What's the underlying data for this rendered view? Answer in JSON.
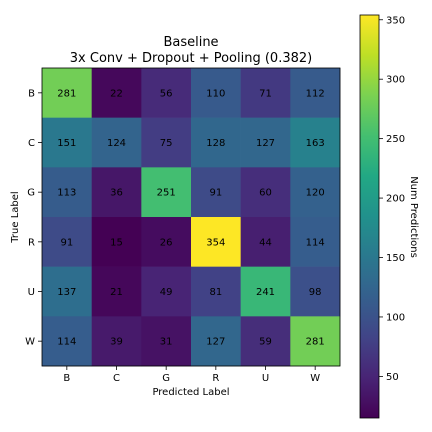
{
  "chart_data": {
    "type": "heatmap",
    "title": "Baseline",
    "subtitle": "3x Conv + Dropout + Pooling (0.382)",
    "xlabel": "Predicted Label",
    "ylabel": "True Label",
    "x_categories": [
      "B",
      "C",
      "G",
      "R",
      "U",
      "W"
    ],
    "y_categories": [
      "B",
      "C",
      "G",
      "R",
      "U",
      "W"
    ],
    "values": [
      [
        281,
        22,
        56,
        110,
        71,
        112
      ],
      [
        151,
        124,
        75,
        128,
        127,
        163
      ],
      [
        113,
        36,
        251,
        91,
        60,
        120
      ],
      [
        91,
        15,
        26,
        354,
        44,
        114
      ],
      [
        137,
        21,
        49,
        81,
        241,
        98
      ],
      [
        114,
        39,
        31,
        127,
        59,
        281
      ]
    ],
    "colormap": "viridis",
    "colorbar": {
      "label": "Num Predictions",
      "range": [
        15,
        354
      ],
      "ticks": [
        50,
        100,
        150,
        200,
        250,
        300,
        350
      ]
    }
  }
}
